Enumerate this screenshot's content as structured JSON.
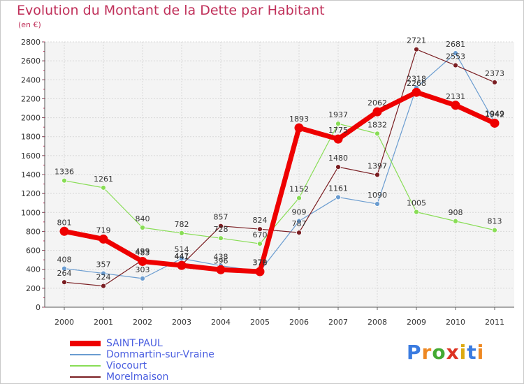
{
  "chart_data": {
    "type": "line",
    "title": "Evolution du Montant de la Dette par Habitant",
    "subtitle": "(en €)",
    "categories": [
      "2000",
      "2001",
      "2002",
      "2003",
      "2004",
      "2005",
      "2006",
      "2007",
      "2008",
      "2009",
      "2010",
      "2011"
    ],
    "ylim": [
      0,
      2800
    ],
    "yticks": [
      0,
      200,
      400,
      600,
      800,
      1000,
      1200,
      1400,
      1600,
      1800,
      2000,
      2200,
      2400,
      2600,
      2800
    ],
    "grid": true,
    "legend_position": "bottom-left",
    "series": [
      {
        "name": "SAINT-PAUL",
        "color": "#ee0000",
        "width": 7,
        "values": [
          801,
          719,
          483,
          441,
          396,
          376,
          1893,
          1775,
          2062,
          2268,
          2131,
          1942
        ]
      },
      {
        "name": "Dommartin-sur-Vraine",
        "color": "#6a9cd0",
        "width": 1.2,
        "values": [
          408,
          357,
          303,
          514,
          438,
          379,
          909,
          1161,
          1090,
          2318,
          2681,
          1949
        ]
      },
      {
        "name": "Viocourt",
        "color": "#88dd55",
        "width": 1.2,
        "values": [
          1336,
          1261,
          840,
          782,
          728,
          670,
          1152,
          1937,
          1832,
          1005,
          908,
          813
        ]
      },
      {
        "name": "Morelmaison",
        "color": "#7a1e22",
        "width": 1.2,
        "values": [
          264,
          224,
          499,
          447,
          857,
          824,
          787,
          1480,
          1397,
          2721,
          2553,
          2373
        ]
      }
    ]
  },
  "logo": {
    "letters": [
      "P",
      "r",
      "o",
      "x",
      "i",
      "t",
      "i"
    ],
    "colors": [
      "#3a7be0",
      "#ee8822",
      "#44aa33",
      "#dd3322",
      "#ddaa11",
      "#3a7be0",
      "#ee8822"
    ]
  }
}
